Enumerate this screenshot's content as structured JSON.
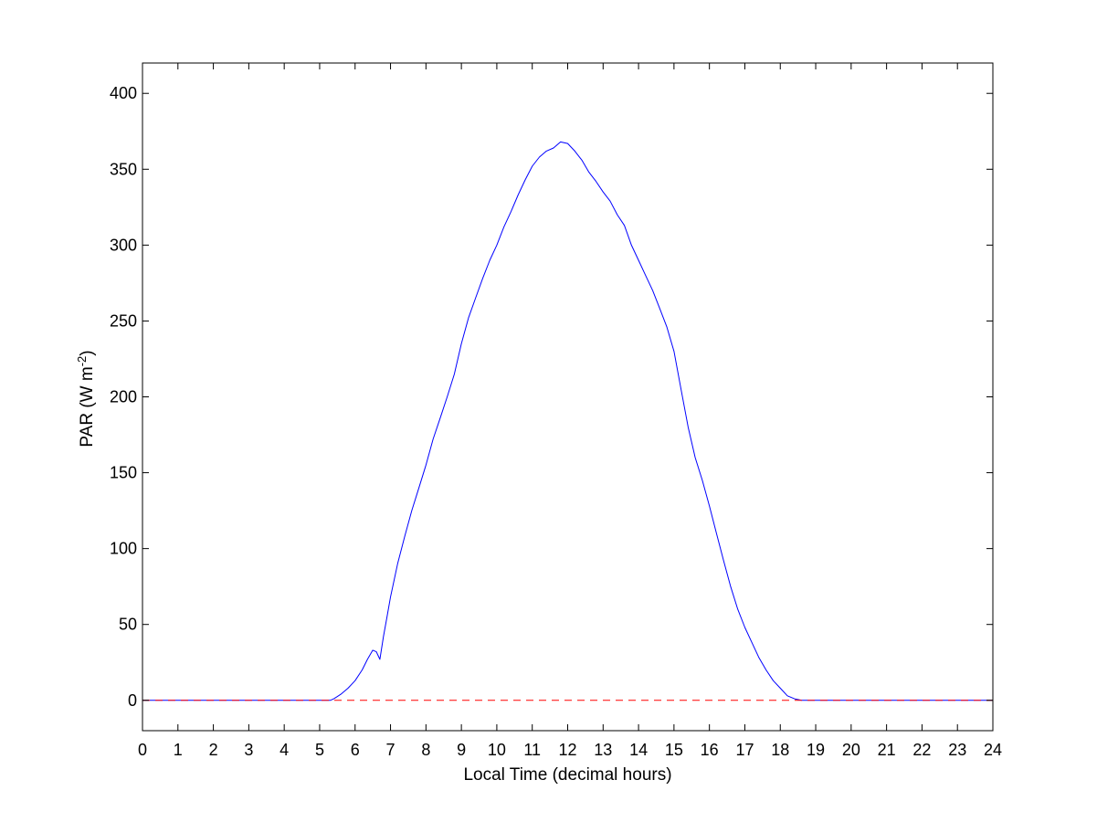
{
  "chart_data": {
    "type": "line",
    "title": "",
    "xlabel": "Local Time (decimal hours)",
    "ylabel_prefix": "PAR (W m",
    "ylabel_exponent": "-2",
    "ylabel_suffix": ")",
    "xlim": [
      0,
      24
    ],
    "ylim": [
      -20,
      420
    ],
    "xticks": [
      0,
      1,
      2,
      3,
      4,
      5,
      6,
      7,
      8,
      9,
      10,
      11,
      12,
      13,
      14,
      15,
      16,
      17,
      18,
      19,
      20,
      21,
      22,
      23,
      24
    ],
    "yticks": [
      0,
      50,
      100,
      150,
      200,
      250,
      300,
      350,
      400
    ],
    "grid": false,
    "legend": "none",
    "colors": {
      "series": "#0000ff",
      "reference_line": "#ff0000"
    },
    "series": [
      {
        "style": "solid",
        "x": [
          0,
          5.3,
          5.4,
          5.6,
          5.8,
          6.0,
          6.2,
          6.35,
          6.5,
          6.6,
          6.7,
          6.8,
          6.9,
          7.0,
          7.2,
          7.4,
          7.6,
          7.8,
          8.0,
          8.2,
          8.4,
          8.6,
          8.8,
          9.0,
          9.2,
          9.4,
          9.6,
          9.8,
          10.0,
          10.2,
          10.4,
          10.6,
          10.8,
          11.0,
          11.2,
          11.4,
          11.6,
          11.8,
          12.0,
          12.2,
          12.4,
          12.6,
          12.8,
          13.0,
          13.2,
          13.4,
          13.6,
          13.8,
          14.0,
          14.2,
          14.4,
          14.6,
          14.8,
          15.0,
          15.2,
          15.4,
          15.6,
          15.8,
          16.0,
          16.2,
          16.4,
          16.6,
          16.8,
          17.0,
          17.2,
          17.4,
          17.6,
          17.8,
          18.0,
          18.2,
          18.4,
          18.6,
          18.7,
          24
        ],
        "y": [
          0,
          0,
          1,
          4,
          8,
          13,
          20,
          27,
          33,
          32,
          27,
          42,
          55,
          68,
          90,
          108,
          125,
          140,
          155,
          172,
          186,
          200,
          215,
          235,
          252,
          265,
          278,
          290,
          300,
          312,
          322,
          333,
          343,
          352,
          358,
          362,
          364,
          368,
          367,
          362,
          356,
          348,
          342,
          335,
          329,
          320,
          313,
          300,
          290,
          280,
          270,
          258,
          246,
          230,
          205,
          180,
          160,
          145,
          128,
          110,
          92,
          75,
          60,
          48,
          38,
          28,
          20,
          13,
          8,
          3,
          1,
          0,
          0,
          0
        ]
      },
      {
        "style": "dashed",
        "x": [
          0,
          24
        ],
        "y": [
          0,
          0
        ]
      }
    ]
  }
}
